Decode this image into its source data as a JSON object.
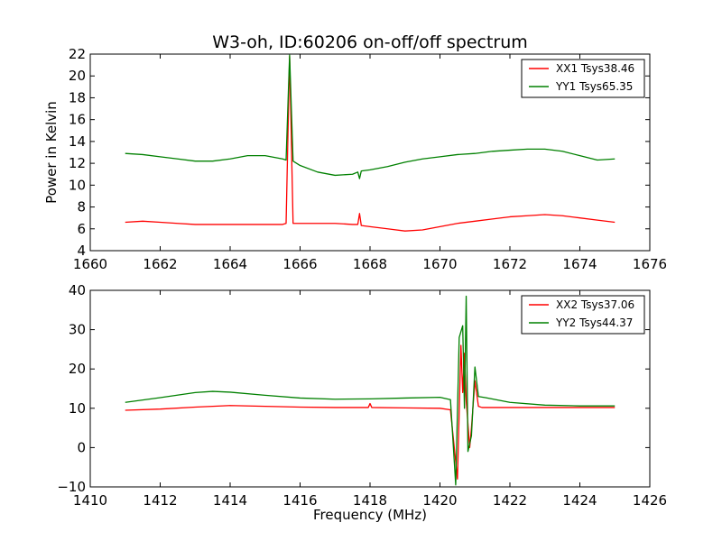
{
  "figure_title": "W3-oh, ID:60206 on-off/off spectrum",
  "colors": {
    "xx": "#ff0000",
    "yy": "#008000",
    "axes": "#000000",
    "background": "#ffffff"
  },
  "chart_data": [
    {
      "type": "line",
      "title": "W3-oh, ID:60206 on-off/off spectrum",
      "xlabel": "",
      "ylabel": "Power in Kelvin",
      "xlim": [
        1660,
        1676
      ],
      "ylim": [
        4,
        22
      ],
      "xticks": [
        "1660",
        "1662",
        "1664",
        "1666",
        "1668",
        "1670",
        "1672",
        "1674",
        "1676"
      ],
      "yticks": [
        "4",
        "6",
        "8",
        "10",
        "12",
        "14",
        "16",
        "18",
        "20",
        "22"
      ],
      "grid": false,
      "legend_position": "top-right",
      "series": [
        {
          "name": "XX1 Tsys38.46",
          "color": "#ff0000",
          "x": [
            1661.0,
            1661.5,
            1662.0,
            1662.5,
            1663.0,
            1663.5,
            1664.0,
            1664.5,
            1665.0,
            1665.5,
            1665.6,
            1665.7,
            1665.8,
            1666.0,
            1666.5,
            1667.0,
            1667.5,
            1667.65,
            1667.7,
            1667.75,
            1668.0,
            1668.5,
            1669.0,
            1669.5,
            1670.0,
            1670.5,
            1671.0,
            1671.5,
            1672.0,
            1672.5,
            1673.0,
            1673.5,
            1674.0,
            1674.5,
            1675.0
          ],
          "y": [
            6.6,
            6.7,
            6.6,
            6.5,
            6.4,
            6.4,
            6.4,
            6.4,
            6.4,
            6.4,
            6.5,
            21.8,
            6.5,
            6.5,
            6.5,
            6.5,
            6.4,
            6.4,
            7.4,
            6.3,
            6.2,
            6.0,
            5.8,
            5.9,
            6.2,
            6.5,
            6.7,
            6.9,
            7.1,
            7.2,
            7.3,
            7.2,
            7.0,
            6.8,
            6.6
          ]
        },
        {
          "name": "YY1 Tsys65.35",
          "color": "#008000",
          "x": [
            1661.0,
            1661.5,
            1662.0,
            1662.5,
            1663.0,
            1663.5,
            1664.0,
            1664.5,
            1665.0,
            1665.5,
            1665.6,
            1665.7,
            1665.8,
            1666.0,
            1666.5,
            1667.0,
            1667.5,
            1667.65,
            1667.7,
            1667.75,
            1668.0,
            1668.5,
            1669.0,
            1669.5,
            1670.0,
            1670.5,
            1671.0,
            1671.5,
            1672.0,
            1672.5,
            1673.0,
            1673.5,
            1674.0,
            1674.5,
            1675.0
          ],
          "y": [
            12.9,
            12.8,
            12.6,
            12.4,
            12.2,
            12.2,
            12.4,
            12.7,
            12.7,
            12.4,
            12.3,
            21.9,
            12.2,
            11.8,
            11.2,
            10.9,
            11.0,
            11.2,
            10.6,
            11.3,
            11.4,
            11.7,
            12.1,
            12.4,
            12.6,
            12.8,
            12.9,
            13.1,
            13.2,
            13.3,
            13.3,
            13.1,
            12.7,
            12.3,
            12.4
          ]
        }
      ]
    },
    {
      "type": "line",
      "title": "",
      "xlabel": "Frequency (MHz)",
      "ylabel": "",
      "xlim": [
        1410,
        1426
      ],
      "ylim": [
        -10,
        40
      ],
      "xticks": [
        "1410",
        "1412",
        "1414",
        "1416",
        "1418",
        "1420",
        "1422",
        "1424",
        "1426"
      ],
      "yticks": [
        "−10",
        "0",
        "10",
        "20",
        "30",
        "40"
      ],
      "grid": false,
      "legend_position": "top-right",
      "series": [
        {
          "name": "XX2 Tsys37.06",
          "color": "#ff0000",
          "x": [
            1411.0,
            1412.0,
            1413.0,
            1414.0,
            1415.0,
            1416.0,
            1417.0,
            1417.95,
            1418.0,
            1418.05,
            1419.0,
            1420.0,
            1420.3,
            1420.5,
            1420.6,
            1420.65,
            1420.7,
            1420.75,
            1420.85,
            1420.9,
            1421.0,
            1421.1,
            1421.2,
            1421.5,
            1422.0,
            1423.0,
            1424.0,
            1425.0
          ],
          "y": [
            9.5,
            9.8,
            10.3,
            10.7,
            10.5,
            10.3,
            10.2,
            10.2,
            11.2,
            10.2,
            10.1,
            10.0,
            9.6,
            -8.0,
            26.0,
            14.0,
            24.0,
            12.0,
            0.0,
            5.0,
            17.0,
            10.5,
            10.2,
            10.2,
            10.2,
            10.2,
            10.2,
            10.2
          ]
        },
        {
          "name": "YY2 Tsys44.37",
          "color": "#008000",
          "x": [
            1411.0,
            1412.0,
            1413.0,
            1413.5,
            1414.0,
            1415.0,
            1416.0,
            1417.0,
            1418.0,
            1419.0,
            1420.0,
            1420.3,
            1420.45,
            1420.55,
            1420.65,
            1420.7,
            1420.75,
            1420.8,
            1420.9,
            1421.0,
            1421.1,
            1421.3,
            1422.0,
            1423.0,
            1424.0,
            1425.0
          ],
          "y": [
            11.5,
            12.7,
            14.0,
            14.3,
            14.1,
            13.3,
            12.6,
            12.3,
            12.4,
            12.6,
            12.8,
            12.2,
            -9.5,
            28.0,
            31.0,
            10.0,
            38.5,
            -1.0,
            3.0,
            20.5,
            13.0,
            12.7,
            11.5,
            10.8,
            10.6,
            10.6
          ]
        }
      ]
    }
  ]
}
